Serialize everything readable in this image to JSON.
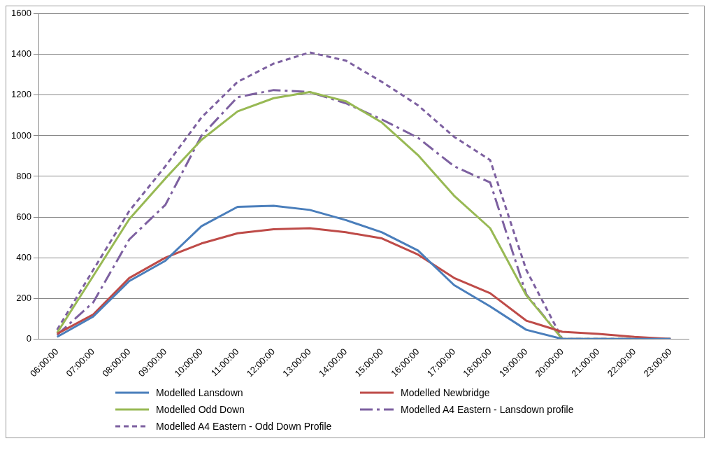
{
  "chart_data": {
    "type": "line",
    "categories": [
      "06:00:00",
      "07:00:00",
      "08:00:00",
      "09:00:00",
      "10:00:00",
      "11:00:00",
      "12:00:00",
      "13:00:00",
      "14:00:00",
      "15:00:00",
      "16:00:00",
      "17:00:00",
      "18:00:00",
      "19:00:00",
      "20:00:00",
      "21:00:00",
      "22:00:00",
      "23:00:00"
    ],
    "series": [
      {
        "name": "Modelled Lansdown",
        "color": "#4a7ebb",
        "line_style": "solid",
        "values": [
          10,
          110,
          285,
          385,
          555,
          650,
          655,
          635,
          585,
          525,
          435,
          265,
          160,
          45,
          0,
          0,
          0,
          0
        ]
      },
      {
        "name": "Modelled Newbridge",
        "color": "#be4b48",
        "line_style": "solid",
        "values": [
          25,
          120,
          300,
          400,
          470,
          520,
          540,
          545,
          525,
          495,
          415,
          300,
          225,
          90,
          35,
          25,
          10,
          0
        ]
      },
      {
        "name": "Modelled Odd Down",
        "color": "#98b954",
        "line_style": "solid",
        "values": [
          30,
          310,
          590,
          790,
          980,
          1120,
          1185,
          1215,
          1170,
          1065,
          905,
          705,
          545,
          215,
          0,
          0,
          0,
          0
        ]
      },
      {
        "name": "Modelled A4 Eastern - Lansdown profile",
        "color": "#7d60a0",
        "line_style": "dashdot",
        "values": [
          20,
          180,
          490,
          660,
          1000,
          1190,
          1225,
          1215,
          1160,
          1080,
          990,
          850,
          770,
          220,
          0,
          0,
          0,
          0
        ]
      },
      {
        "name": "Modelled A4 Eastern - Odd Down Profile",
        "color": "#7d60a0",
        "line_style": "dashed",
        "values": [
          45,
          340,
          630,
          850,
          1090,
          1265,
          1355,
          1410,
          1370,
          1265,
          1150,
          995,
          880,
          340,
          0,
          0,
          0,
          0
        ]
      }
    ],
    "ylim": [
      0,
      1600
    ],
    "yticks": [
      0,
      200,
      400,
      600,
      800,
      1000,
      1200,
      1400,
      1600
    ],
    "grid": "y",
    "legend": "bottom",
    "marker": "none"
  }
}
